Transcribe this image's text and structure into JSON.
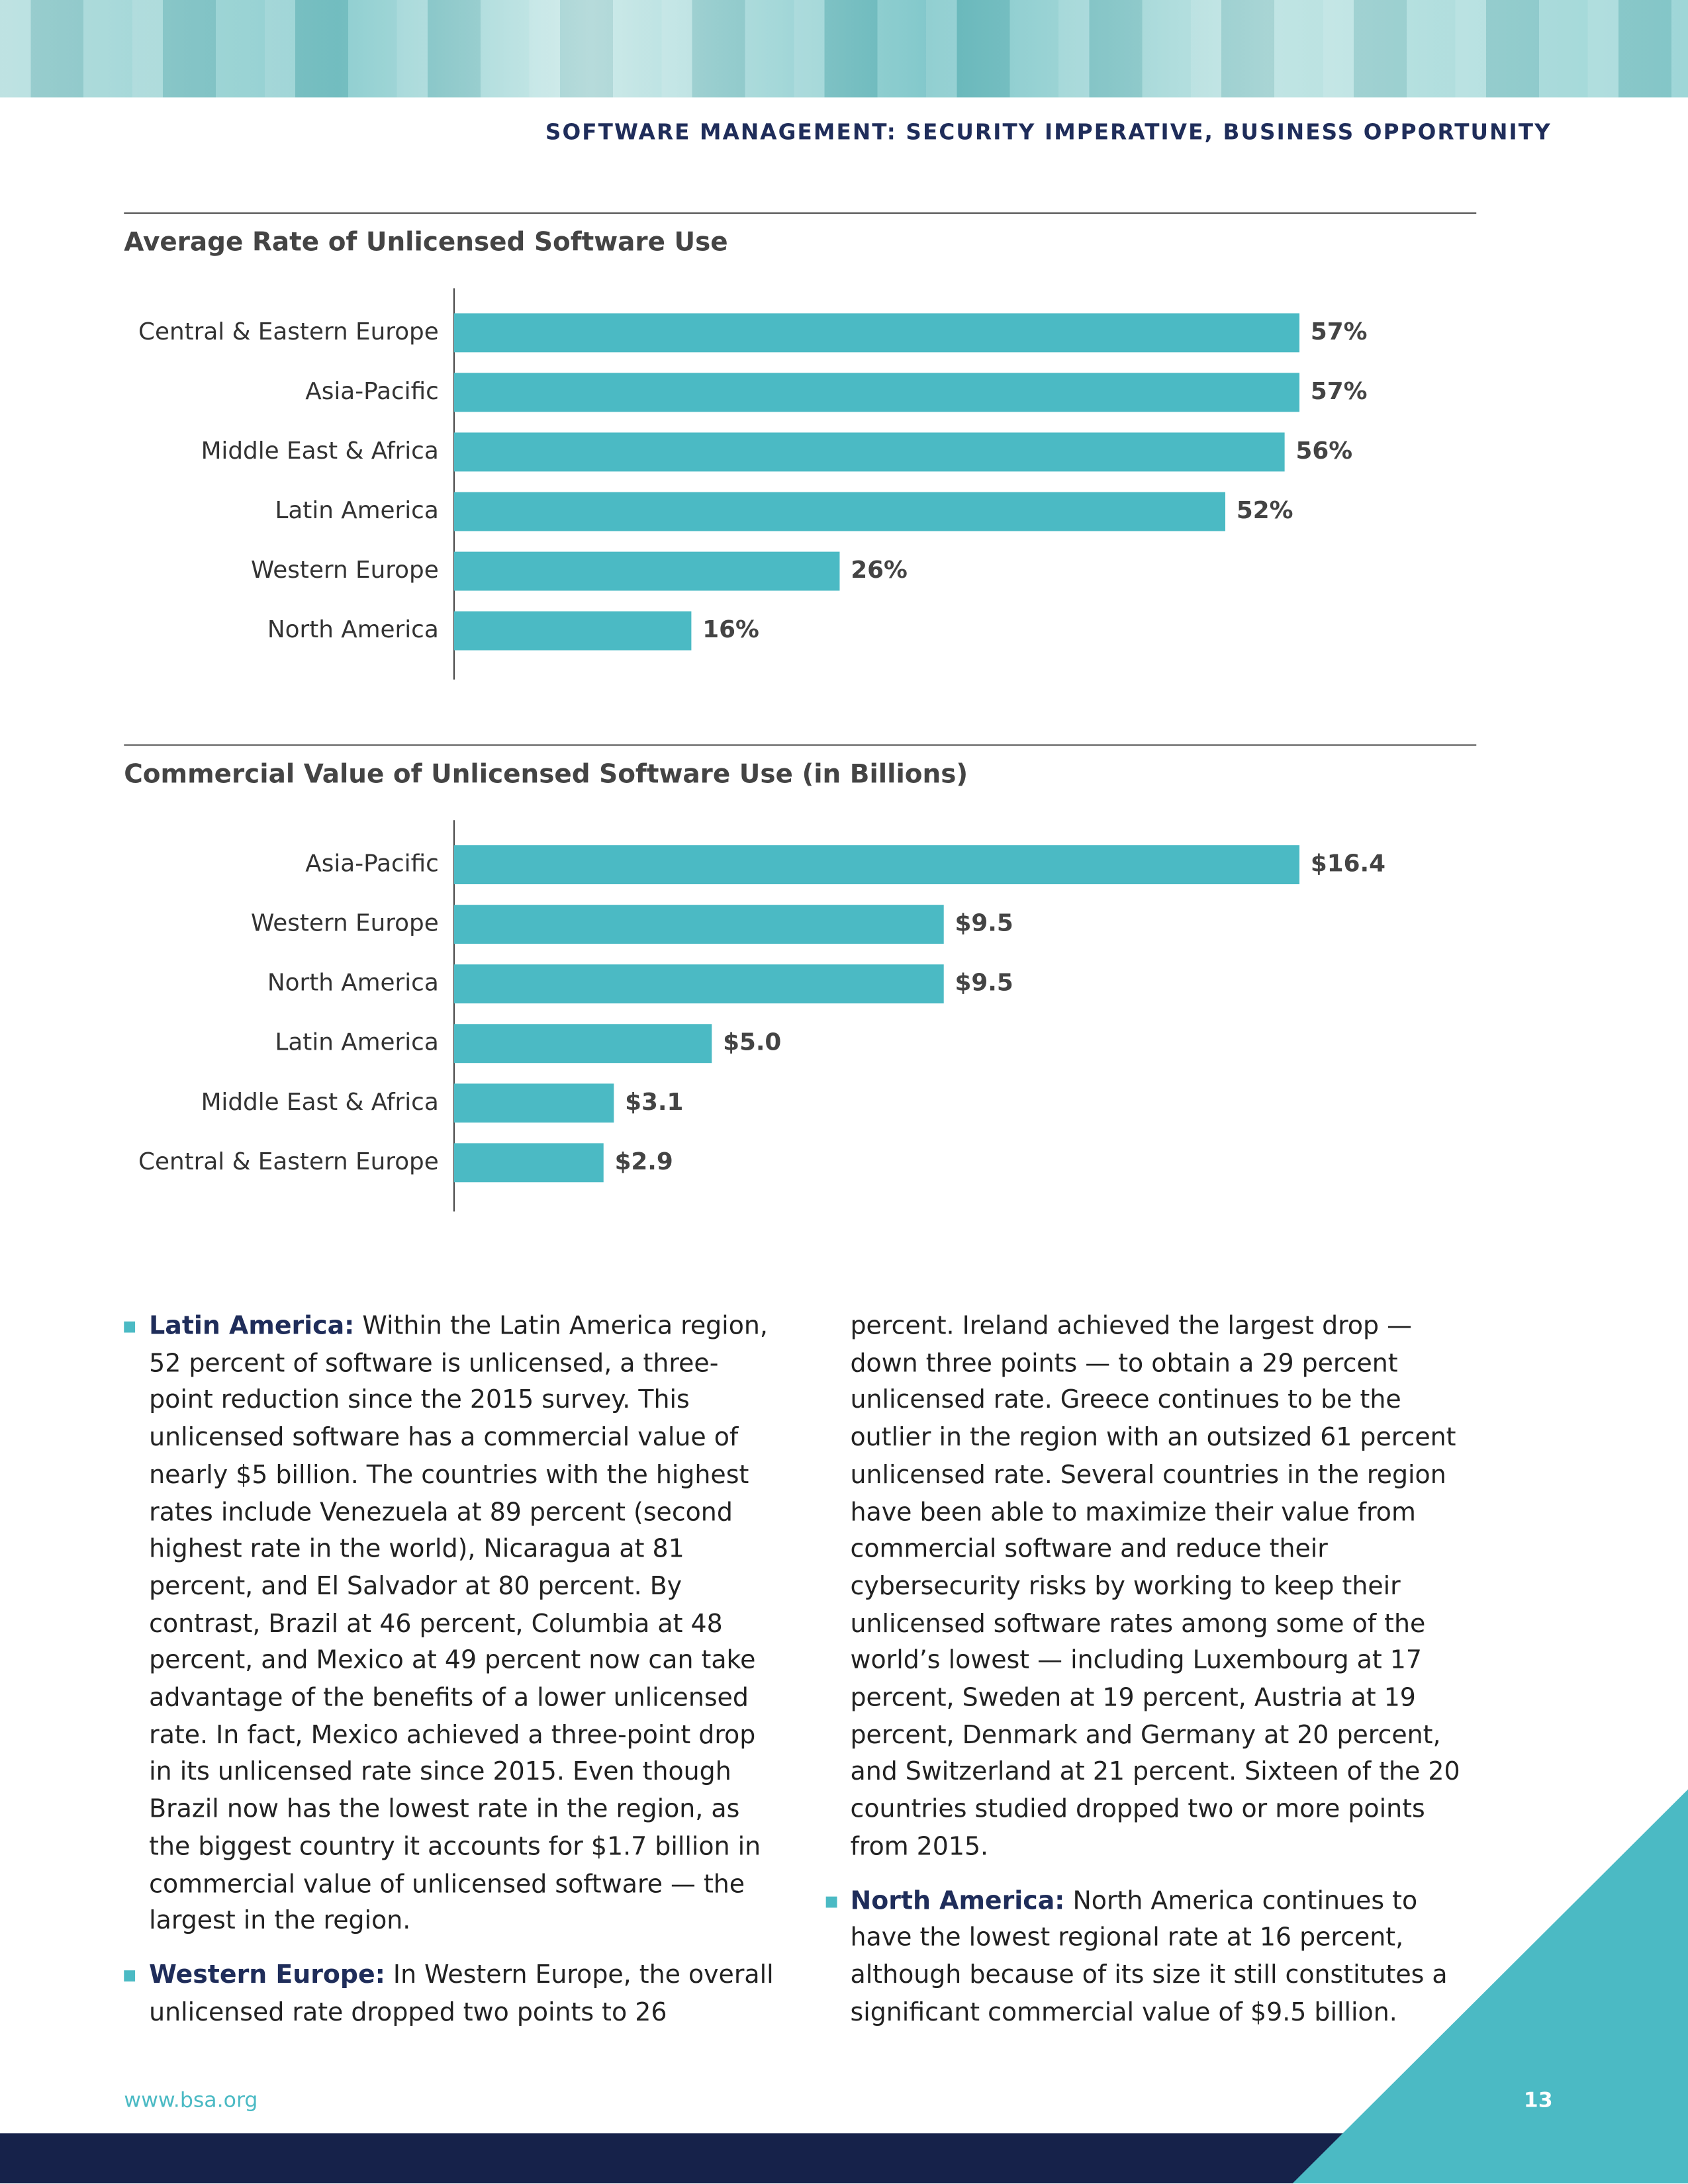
{
  "header": {
    "title": "SOFTWARE MANAGEMENT: SECURITY IMPERATIVE, BUSINESS OPPORTUNITY"
  },
  "chart_data": [
    {
      "type": "bar",
      "orientation": "horizontal",
      "title": "Average Rate of Unlicensed Software Use",
      "categories": [
        "Central & Eastern Europe",
        "Asia-Pacific",
        "Middle East & Africa",
        "Latin America",
        "Western Europe",
        "North America"
      ],
      "values": [
        57,
        57,
        56,
        52,
        26,
        16
      ],
      "value_labels": [
        "57%",
        "57%",
        "56%",
        "52%",
        "26%",
        "16%"
      ],
      "color": "#4bbac4"
    },
    {
      "type": "bar",
      "orientation": "horizontal",
      "title": "Commercial Value of Unlicensed Software Use (in Billions)",
      "categories": [
        "Asia-Pacific",
        "Western Europe",
        "North America",
        "Latin America",
        "Middle East & Africa",
        "Central & Eastern Europe"
      ],
      "values": [
        16.4,
        9.5,
        9.5,
        5.0,
        3.1,
        2.9
      ],
      "value_labels": [
        "$16.4",
        "$9.5",
        "$9.5",
        "$5.0",
        "$3.1",
        "$2.9"
      ],
      "color": "#4bbac4"
    }
  ],
  "body": {
    "paragraphs": [
      {
        "lead": "Latin America:",
        "text": " Within the Latin America region, 52 percent of software is unlicensed, a three-point reduction since the 2015 survey. This unlicensed software has a commercial value of nearly $5 billion. The countries with the highest rates include Venezuela at 89 percent (second highest rate in the world), Nicaragua at 81 percent, and El Salvador at 80 percent. By contrast, Brazil at 46 percent, Columbia at 48 percent, and Mexico at 49 percent now can take advantage of the benefits of a lower unlicensed rate. In fact, Mexico achieved a three-point drop in its unlicensed rate since 2015. Even though Brazil now has the lowest rate in the region, as the biggest country it accounts for $1.7 billion in commercial value of unlicensed software — the largest in the region."
      },
      {
        "lead": "Western Europe:",
        "text": " In Western Europe, the overall unlicensed rate dropped two points to 26 percent. Ireland achieved the largest drop — down three points — to obtain a 29 percent unlicensed rate. Greece continues to be the outlier in the region with an outsized 61 percent unlicensed rate. Several countries in the region have been able to maximize their value from commercial software and reduce their cybersecurity risks by working to keep their unlicensed software rates among some of the world’s lowest — including Luxembourg at 17 percent, Sweden at 19 percent, Austria at 19 percent, Denmark and Germany at 20 percent, and Switzerland at 21 percent. Sixteen of the 20 countries studied dropped two or more points from 2015."
      },
      {
        "lead": "North America:",
        "text": " North America continues to have the lowest regional rate at 16 percent, although because of its size it still constitutes a significant commercial value of $9.5 billion."
      }
    ]
  },
  "footer": {
    "url": "www.bsa.org",
    "page": "13"
  }
}
